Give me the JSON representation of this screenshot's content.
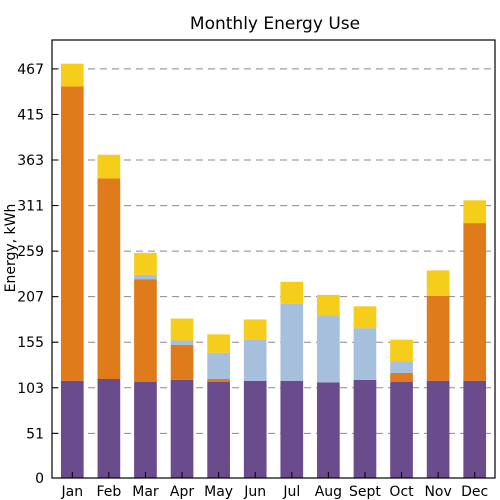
{
  "chart_data": {
    "type": "bar",
    "stacked": true,
    "title": "Monthly Energy Use",
    "xlabel": "",
    "ylabel": "Energy, kWh",
    "ylim": [
      0,
      500
    ],
    "yticks": [
      0,
      51,
      103,
      155,
      207,
      259,
      311,
      363,
      415,
      467
    ],
    "grid": "y-dashed",
    "categories": [
      "Jan",
      "Feb",
      "Mar",
      "Apr",
      "May",
      "Jun",
      "Jul",
      "Aug",
      "Sept",
      "Oct",
      "Nov",
      "Dec"
    ],
    "series": [
      {
        "color": "#6a4c8c",
        "values": [
          111,
          113,
          110,
          112,
          110,
          111,
          111,
          109,
          112,
          110,
          111,
          111
        ]
      },
      {
        "color": "#e07b1c",
        "values": [
          336,
          229,
          117,
          40,
          3,
          0,
          0,
          0,
          0,
          10,
          97,
          180
        ]
      },
      {
        "color": "#a6bfdc",
        "values": [
          0,
          0,
          5,
          5,
          30,
          47,
          88,
          77,
          59,
          13,
          0,
          0
        ]
      },
      {
        "color": "#f7cd1b",
        "values": [
          26,
          27,
          25,
          25,
          21,
          23,
          25,
          23,
          25,
          25,
          29,
          26
        ]
      }
    ],
    "colors": {
      "grid": "#8a8a8a",
      "axis": "#000000"
    }
  }
}
